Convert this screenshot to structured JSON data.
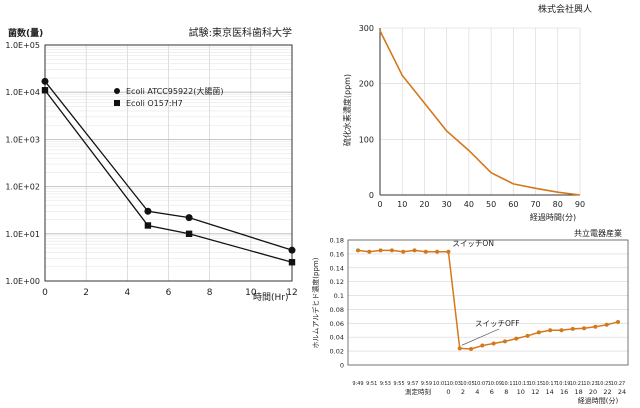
{
  "chart_data": [
    {
      "type": "line",
      "title": "試験:東京医科歯科大学",
      "ylabel": "菌数(量)",
      "xlabel": "時間(Hr)",
      "y_scale": "log",
      "x": [
        0,
        5,
        7,
        12
      ],
      "x_ticks": [
        "0",
        "2",
        "4",
        "6",
        "8",
        "10",
        "12"
      ],
      "y_ticks": [
        "1.0E+05",
        "1.0E+04",
        "1.0E+03",
        "1.0E+02",
        "1.0E+01",
        "1.0E+00"
      ],
      "xlim": [
        0,
        12
      ],
      "ylim": [
        1,
        100000
      ],
      "grid": true,
      "legend": "top-center",
      "series": [
        {
          "name": "Ecoli ATCC95922(大腸菌)",
          "marker": "circle",
          "values": [
            17000,
            30,
            22,
            4.5
          ]
        },
        {
          "name": "Ecoli O157:H7",
          "marker": "square",
          "values": [
            11000,
            15,
            10,
            2.5
          ]
        }
      ]
    },
    {
      "type": "line",
      "title": "株式会社興人",
      "ylabel": "硫化水素濃度(ppm)",
      "xlabel": "経過時間(分)",
      "x": [
        0,
        10,
        20,
        30,
        40,
        50,
        60,
        70,
        80,
        90
      ],
      "values": [
        295,
        215,
        165,
        115,
        80,
        40,
        20,
        12,
        5,
        0
      ],
      "x_ticks": [
        "0",
        "10",
        "20",
        "30",
        "40",
        "50",
        "60",
        "70",
        "80",
        "90"
      ],
      "y_ticks": [
        "0",
        "100",
        "200",
        "300"
      ],
      "xlim": [
        0,
        90
      ],
      "ylim": [
        0,
        300
      ],
      "grid": true,
      "color": "#d4781e"
    },
    {
      "type": "line",
      "title": "共立電器産業",
      "ylabel": "ホルムアルデヒド濃度(ppm)",
      "xlabel": "経過時間(分)",
      "xlabel2": "測定時刻",
      "x": [
        0,
        1,
        2,
        3,
        4,
        5,
        6,
        7,
        8,
        9,
        10,
        11,
        12,
        13,
        14,
        15,
        16,
        17,
        18,
        19,
        20,
        21,
        22,
        23
      ],
      "values": [
        0.165,
        0.163,
        0.165,
        0.165,
        0.163,
        0.165,
        0.163,
        0.163,
        0.163,
        0.024,
        0.023,
        0.028,
        0.031,
        0.034,
        0.038,
        0.042,
        0.047,
        0.05,
        0.05,
        0.052,
        0.053,
        0.055,
        0.058,
        0.062
      ],
      "y_ticks": [
        "0",
        "0.02",
        "0.04",
        "0.06",
        "0.08",
        "0.1",
        "0.12",
        "0.14",
        "0.16",
        "0.18"
      ],
      "ylim": [
        0,
        0.18
      ],
      "time_labels": [
        "9:49",
        "9:51",
        "9:53",
        "9:55",
        "9:57",
        "9:59",
        "10:01",
        "10:03",
        "10:05",
        "10:07",
        "10:09",
        "10:11",
        "10:13",
        "10:15",
        "10:17",
        "10:19",
        "10:21",
        "10:23",
        "10:25",
        "10:27"
      ],
      "elapsed_labels": [
        "0",
        "2",
        "4",
        "6",
        "8",
        "10",
        "12",
        "14",
        "16",
        "18",
        "20",
        "22",
        "24"
      ],
      "annotations": [
        {
          "text": "スイッチON",
          "x": 8
        },
        {
          "text": "スイッチOFF",
          "x": 10
        }
      ],
      "grid": true,
      "color": "#d4781e"
    }
  ]
}
